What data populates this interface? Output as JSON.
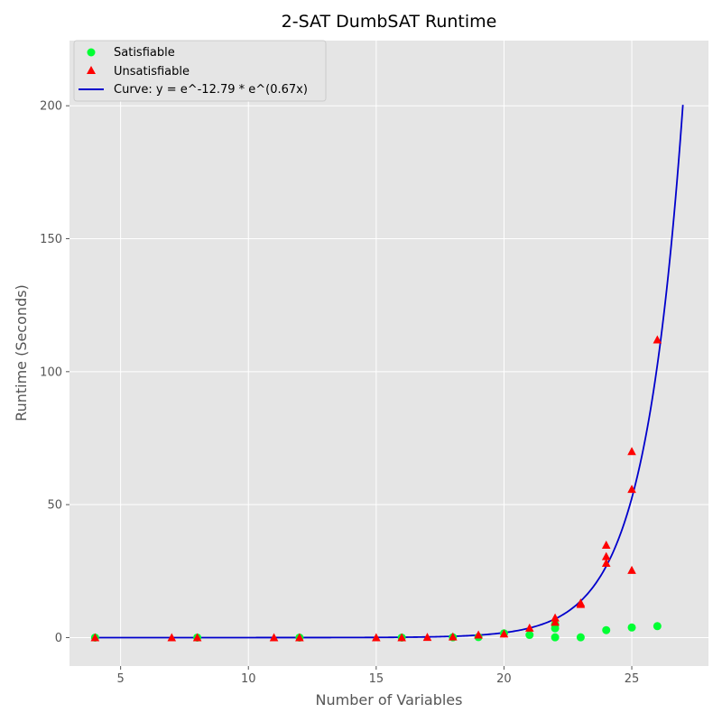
{
  "chart_data": {
    "type": "scatter",
    "title": "2-SAT DumbSAT Runtime",
    "xlabel": "Number of Variables",
    "ylabel": "Runtime (Seconds)",
    "xlim": [
      3,
      28
    ],
    "ylim": [
      -10.7,
      224.5
    ],
    "xticks": [
      5,
      10,
      15,
      20,
      25
    ],
    "yticks": [
      0,
      50,
      100,
      150,
      200
    ],
    "grid": true,
    "legend_position": "top-left",
    "series": [
      {
        "name": "Satisfiable",
        "marker": "circle",
        "color": "#00ff33",
        "points": [
          [
            4,
            0.0
          ],
          [
            8,
            0.0
          ],
          [
            12,
            0.0
          ],
          [
            16,
            0.0
          ],
          [
            18,
            0.1
          ],
          [
            19,
            0.2
          ],
          [
            20,
            1.6
          ],
          [
            21,
            1.0
          ],
          [
            22,
            5.0
          ],
          [
            22,
            3.5
          ],
          [
            22,
            0.1
          ],
          [
            23,
            0.1
          ],
          [
            24,
            2.8
          ],
          [
            25,
            3.8
          ],
          [
            26,
            4.3
          ]
        ]
      },
      {
        "name": "Unsatisfiable",
        "marker": "triangle",
        "color": "#ff0000",
        "points": [
          [
            4,
            0.0
          ],
          [
            7,
            0.0
          ],
          [
            8,
            0.0
          ],
          [
            11,
            0.0
          ],
          [
            12,
            0.0
          ],
          [
            15,
            0.0
          ],
          [
            16,
            0.0
          ],
          [
            17,
            0.1
          ],
          [
            18,
            0.3
          ],
          [
            19,
            1.0
          ],
          [
            20,
            1.4
          ],
          [
            21,
            3.6
          ],
          [
            22,
            5.8
          ],
          [
            22,
            7.4
          ],
          [
            23,
            12.5
          ],
          [
            23,
            13.0
          ],
          [
            24,
            28.0
          ],
          [
            24,
            30.5
          ],
          [
            24,
            34.8
          ],
          [
            25,
            25.3
          ],
          [
            25,
            55.8
          ],
          [
            25,
            70.0
          ],
          [
            26,
            112.0
          ]
        ]
      },
      {
        "name": "Curve: y = e^-12.79 * e^(0.67x)",
        "type": "line",
        "color": "#0000cc",
        "equation": {
          "a": -12.79,
          "b": 0.67
        },
        "x_range": [
          4,
          27
        ]
      }
    ]
  }
}
